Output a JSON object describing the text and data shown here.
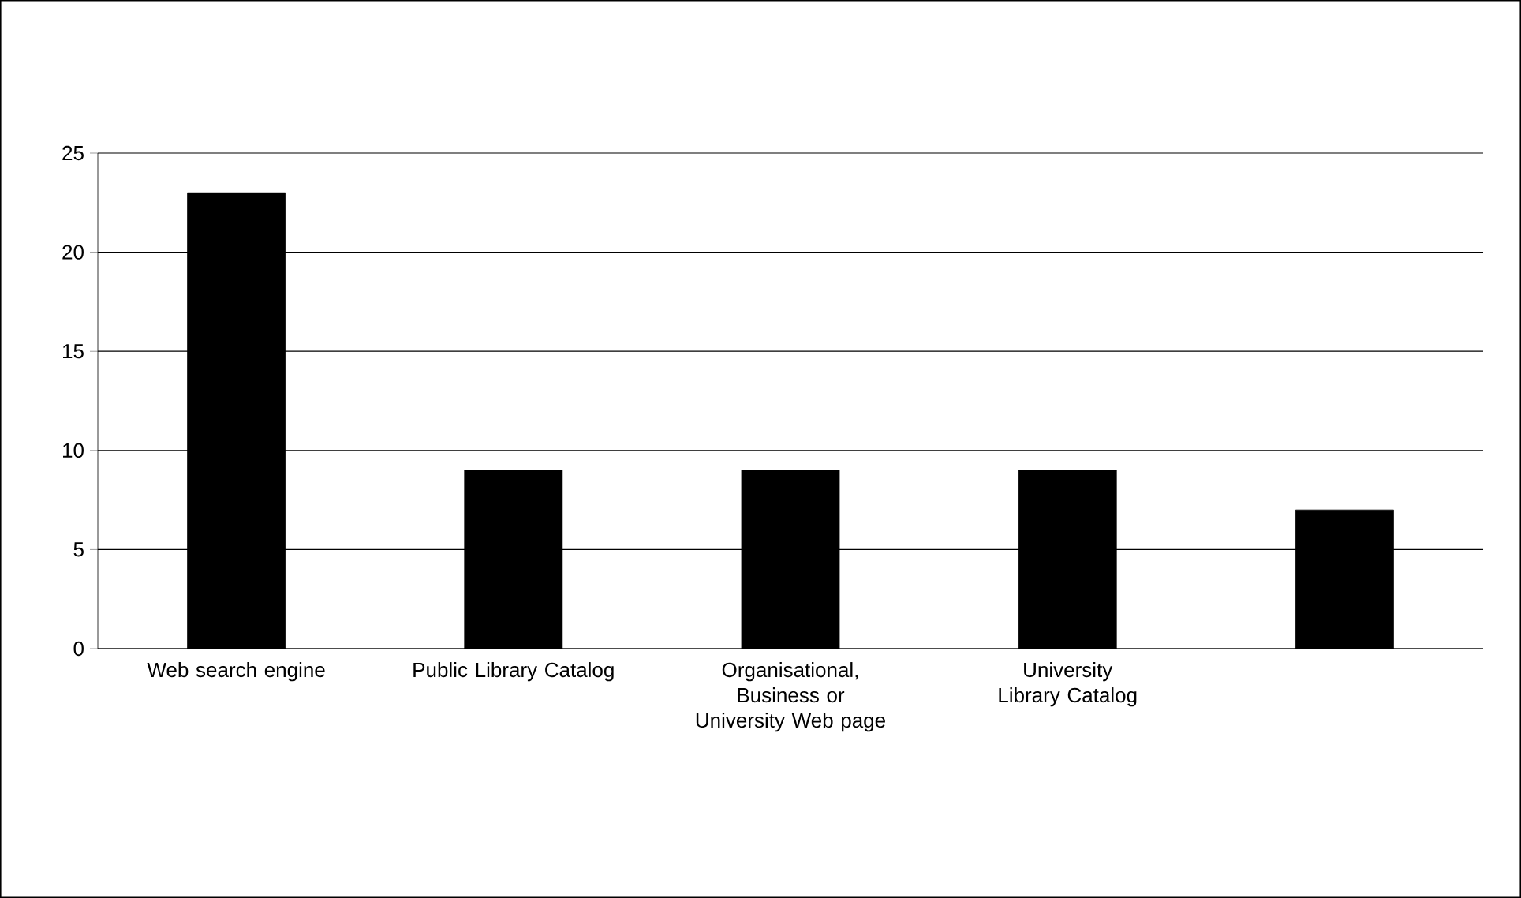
{
  "chart_data": {
    "type": "bar",
    "categories": [
      "Web search engine",
      "Public Library Catalog",
      "Organisational, Business or University Web page",
      "University Library Catalog",
      null
    ],
    "values": [
      23,
      9,
      9,
      9,
      7
    ],
    "color": "#000000",
    "ylim": [
      0,
      25
    ],
    "yticks": [
      0,
      5,
      10,
      15,
      20,
      25
    ],
    "grid": "y"
  }
}
